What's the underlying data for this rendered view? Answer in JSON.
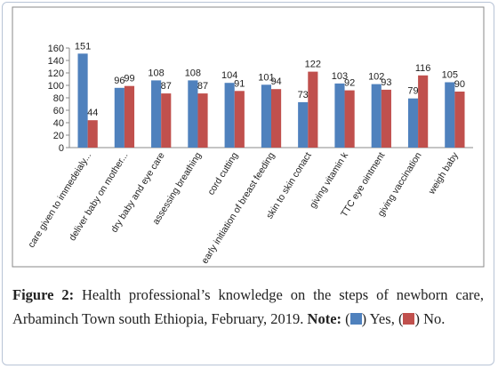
{
  "chart_data": {
    "type": "bar",
    "categories": [
      "care given to immedeialy...",
      "deliver baby on mother...",
      "dry baby and eye care",
      "assessing breathing",
      "cord cutting",
      "early initiation of breast feeding",
      "skin to skin conact",
      "giving vitamin k",
      "TTC eye ointment",
      "giving vaccination",
      "weigh baby"
    ],
    "series": [
      {
        "name": "Yes",
        "color": "#4f81bd",
        "values": [
          151,
          96,
          108,
          108,
          104,
          101,
          73,
          103,
          102,
          79,
          105
        ]
      },
      {
        "name": "No",
        "color": "#c0504d",
        "values": [
          44,
          99,
          87,
          87,
          91,
          94,
          122,
          92,
          93,
          116,
          90
        ]
      }
    ],
    "ylim": [
      0,
      160
    ],
    "yticks": [
      0,
      20,
      40,
      60,
      80,
      100,
      120,
      140,
      160
    ],
    "grid": false
  },
  "caption": {
    "label": "Figure 2:",
    "text": "Health professional’s knowledge on the steps of newborn care, Arbaminch Town south Ethiopia, February, 2019.",
    "note": "Note:"
  }
}
